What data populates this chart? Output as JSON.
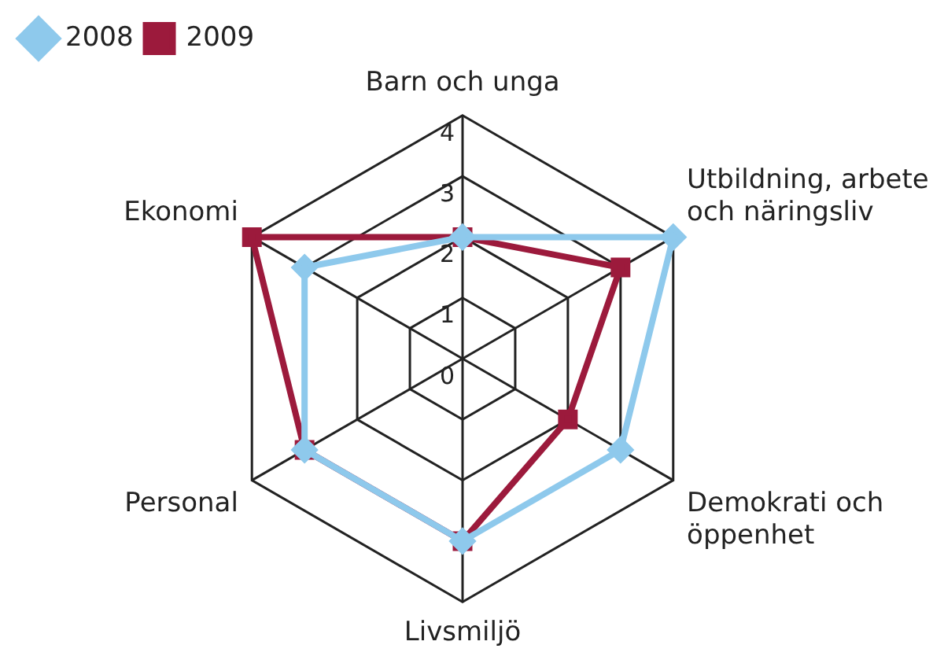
{
  "chart_data": {
    "type": "radar",
    "categories": [
      "Barn och unga",
      "Utbildning, arbete och näringsliv",
      "Demokrati och öppenhet",
      "Livsmiljö",
      "Personal",
      "Ekonomi"
    ],
    "series": [
      {
        "name": "2008",
        "color": "#8ec9ec",
        "marker": "diamond",
        "values": [
          2,
          4,
          3,
          3,
          3,
          3
        ]
      },
      {
        "name": "2009",
        "color": "#9c1a3c",
        "marker": "square",
        "values": [
          2,
          3,
          2,
          3,
          3,
          4
        ]
      }
    ],
    "ylim": [
      0,
      4
    ],
    "yticks": [
      0,
      1,
      2,
      3,
      4
    ],
    "grid": true,
    "legend": "top left"
  }
}
